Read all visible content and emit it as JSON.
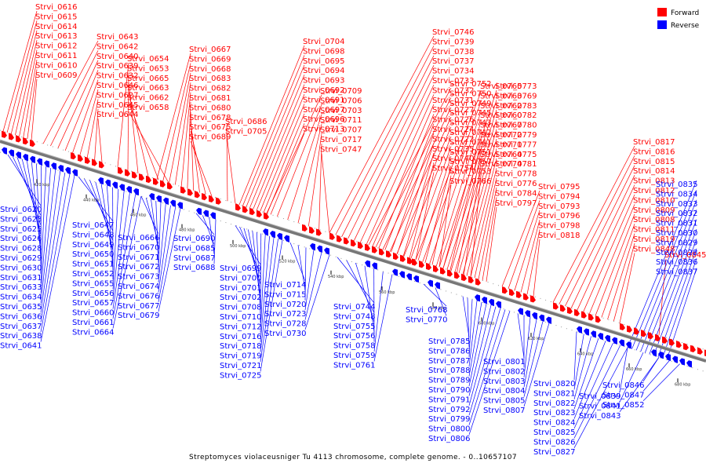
{
  "colors": {
    "forward": "#ff0000",
    "reverse": "#0000ff",
    "axis": "#777777"
  },
  "legend": {
    "forward_label": "Forward",
    "reverse_label": "Reverse"
  },
  "caption": "Streptomyces violaceusniger Tu 4113 chromosome, complete genome. - 0..10657107",
  "ticks": [
    "420 kbp",
    "440 kbp",
    "460 kbp",
    "480 kbp",
    "500 kbp",
    "520 kbp",
    "540 kbp",
    "560 kbp",
    "580 kbp",
    "600 kbp",
    "620 kbp",
    "640 kbp",
    "660 kbp",
    "680 kbp"
  ],
  "forward_labels": [
    "Strvi_0616",
    "Strvi_0615",
    "Strvi_0614",
    "Strvi_0613",
    "Strvi_0612",
    "Strvi_0611",
    "Strvi_0610",
    "Strvi_0609",
    "Strvi_0643",
    "Strvi_0642",
    "Strvi_0640",
    "Strvi_0639",
    "Strvi_0632",
    "Strvi_0646",
    "Strvi_0627",
    "Strvi_0645",
    "Strvi_0644",
    "Strvi_0654",
    "Strvi_0653",
    "Strvi_0665",
    "Strvi_0663",
    "Strvi_0662",
    "Strvi_0658",
    "Strvi_0667",
    "Strvi_0669",
    "Strvi_0668",
    "Strvi_0683",
    "Strvi_0682",
    "Strvi_0681",
    "Strvi_0680",
    "Strvi_0678",
    "Strvi_0675",
    "Strvi_0689",
    "Strvi_0686",
    "Strvi_0705",
    "Strvi_0704",
    "Strvi_0698",
    "Strvi_0695",
    "Strvi_0694",
    "Strvi_0693",
    "Strvi_0692",
    "Strvi_0691",
    "Strvi_0697",
    "Strvi_0696",
    "Strvi_0713",
    "Strvi_0709",
    "Strvi_0706",
    "Strvi_0703",
    "Strvi_0711",
    "Strvi_0707",
    "Strvi_0717",
    "Strvi_0747",
    "Strvi_0746",
    "Strvi_0739",
    "Strvi_0738",
    "Strvi_0737",
    "Strvi_0734",
    "Strvi_0733",
    "Strvi_0732",
    "Strvi_0731",
    "Strvi_0727",
    "Strvi_0726",
    "Strvi_0724",
    "Strvi_0722",
    "Strvi_0735",
    "Strvi_0740",
    "Strvi_0754",
    "Strvi_0752",
    "Strvi_0750",
    "Strvi_0749",
    "Strvi_0745",
    "Strvi_0743",
    "Strvi_0742",
    "Strvi_0741",
    "Strvi_0751",
    "Strvi_0757",
    "Strvi_0753",
    "Strvi_0766",
    "Strvi_0765",
    "Strvi_0763",
    "Strvi_0762",
    "Strvi_0760",
    "Strvi_0767",
    "Strvi_0772",
    "Strvi_0771",
    "Strvi_0764",
    "Strvi_0774",
    "Strvi_0773",
    "Strvi_0769",
    "Strvi_0783",
    "Strvi_0782",
    "Strvi_0780",
    "Strvi_0779",
    "Strvi_0777",
    "Strvi_0775",
    "Strvi_0781",
    "Strvi_0778",
    "Strvi_0776",
    "Strvi_0784",
    "Strvi_0797",
    "Strvi_0795",
    "Strvi_0794",
    "Strvi_0793",
    "Strvi_0796",
    "Strvi_0798",
    "Strvi_0818",
    "Strvi_0817",
    "Strvi_0816",
    "Strvi_0815",
    "Strvi_0814",
    "Strvi_0813",
    "Strvi_0812",
    "Strvi_0810",
    "Strvi_0809",
    "Strvi_0808",
    "Strvi_0811",
    "Strvi_0819",
    "Strvi_0848",
    "Strvi_0845"
  ],
  "reverse_labels": [
    "Strvi_0620",
    "Strvi_0623",
    "Strvi_0625",
    "Strvi_0626",
    "Strvi_0628",
    "Strvi_0629",
    "Strvi_0630",
    "Strvi_0631",
    "Strvi_0633",
    "Strvi_0634",
    "Strvi_0635",
    "Strvi_0636",
    "Strvi_0637",
    "Strvi_0638",
    "Strvi_0641",
    "Strvi_0647",
    "Strvi_0648",
    "Strvi_0649",
    "Strvi_0650",
    "Strvi_0651",
    "Strvi_0652",
    "Strvi_0655",
    "Strvi_0656",
    "Strvi_0657",
    "Strvi_0660",
    "Strvi_0661",
    "Strvi_0664",
    "Strvi_0666",
    "Strvi_0670",
    "Strvi_0671",
    "Strvi_0672",
    "Strvi_0673",
    "Strvi_0674",
    "Strvi_0676",
    "Strvi_0677",
    "Strvi_0679",
    "Strvi_0690",
    "Strvi_0685",
    "Strvi_0687",
    "Strvi_0688",
    "Strvi_0699",
    "Strvi_0700",
    "Strvi_0701",
    "Strvi_0702",
    "Strvi_0708",
    "Strvi_0710",
    "Strvi_0712",
    "Strvi_0716",
    "Strvi_0718",
    "Strvi_0719",
    "Strvi_0721",
    "Strvi_0725",
    "Strvi_0714",
    "Strvi_0715",
    "Strvi_0720",
    "Strvi_0723",
    "Strvi_0728",
    "Strvi_0730",
    "Strvi_0744",
    "Strvi_0748",
    "Strvi_0755",
    "Strvi_0756",
    "Strvi_0758",
    "Strvi_0759",
    "Strvi_0761",
    "Strvi_0768",
    "Strvi_0770",
    "Strvi_0785",
    "Strvi_0786",
    "Strvi_0787",
    "Strvi_0788",
    "Strvi_0789",
    "Strvi_0790",
    "Strvi_0791",
    "Strvi_0792",
    "Strvi_0799",
    "Strvi_0800",
    "Strvi_0806",
    "Strvi_0801",
    "Strvi_0802",
    "Strvi_0803",
    "Strvi_0804",
    "Strvi_0805",
    "Strvi_0807",
    "Strvi_0820",
    "Strvi_0821",
    "Strvi_0822",
    "Strvi_0823",
    "Strvi_0824",
    "Strvi_0825",
    "Strvi_0826",
    "Strvi_0827",
    "Strvi_0835",
    "Strvi_0834",
    "Strvi_0833",
    "Strvi_0832",
    "Strvi_0831",
    "Strvi_0830",
    "Strvi_0829",
    "Strvi_0828",
    "Strvi_0836",
    "Strvi_0837",
    "Strvi_0839",
    "Strvi_0841",
    "Strvi_0843",
    "Strvi_0846",
    "Strvi_0847",
    "Strvi_0852"
  ]
}
